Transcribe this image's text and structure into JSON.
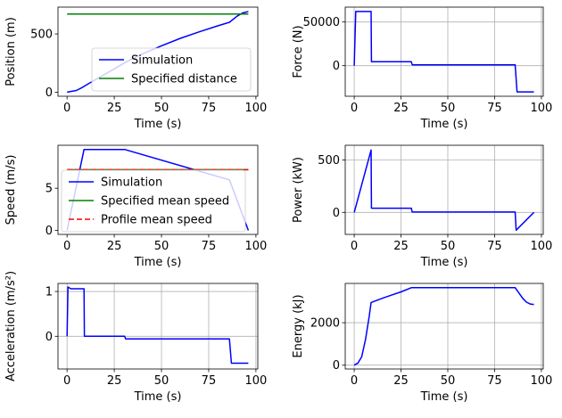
{
  "figure_title": "",
  "chart_data": [
    {
      "type": "line",
      "id": "position",
      "title": "",
      "xlabel": "Time (s)",
      "ylabel": "Position (m)",
      "xlim": [
        -4.8,
        101
      ],
      "ylim": [
        -35,
        730
      ],
      "xticks": [
        0,
        25,
        50,
        75,
        100
      ],
      "yticks": [
        0,
        500
      ],
      "xtick_labels": [
        "0",
        "25",
        "50",
        "75",
        "100"
      ],
      "ytick_labels": [
        "0",
        "500"
      ],
      "grid": false,
      "legend": {
        "placement": "lower-right",
        "entries": [
          "Simulation",
          "Specified distance"
        ]
      },
      "series": [
        {
          "name": "Simulation",
          "color": "#0000ff",
          "dash": "",
          "x": [
            0,
            5,
            8,
            9.2,
            15,
            20,
            25,
            31,
            40,
            50,
            60,
            70,
            80,
            86,
            90,
            93,
            96
          ],
          "y": [
            0,
            15,
            40,
            52,
            107,
            153,
            200,
            257,
            330,
            398,
            462,
            518,
            570,
            600,
            652,
            680,
            692
          ]
        },
        {
          "name": "Specified distance",
          "color": "#008000",
          "dash": "",
          "x": [
            0,
            96
          ],
          "y": [
            670,
            670
          ]
        }
      ]
    },
    {
      "type": "line",
      "id": "force",
      "title": "",
      "xlabel": "Time (s)",
      "ylabel": "Force (N)",
      "xlim": [
        -4.8,
        101
      ],
      "ylim": [
        -35000,
        67000
      ],
      "xticks": [
        0,
        25,
        50,
        75,
        100
      ],
      "yticks": [
        0,
        50000
      ],
      "xtick_labels": [
        "0",
        "25",
        "50",
        "75",
        "100"
      ],
      "ytick_labels": [
        "0",
        "50000"
      ],
      "grid": true,
      "legend": null,
      "series": [
        {
          "name": "Force",
          "color": "#0000ff",
          "dash": "",
          "x": [
            0,
            0.8,
            9,
            9.2,
            30.5,
            31,
            86,
            87,
            96
          ],
          "y": [
            0,
            62000,
            62000,
            4500,
            4500,
            1000,
            1000,
            -30000,
            -30000
          ]
        }
      ]
    },
    {
      "type": "line",
      "id": "speed",
      "title": "",
      "xlabel": "Time (s)",
      "ylabel": "Speed (m/s)",
      "xlim": [
        -4.8,
        101
      ],
      "ylim": [
        -0.48,
        10.1
      ],
      "xticks": [
        0,
        25,
        50,
        75,
        100
      ],
      "yticks": [
        0,
        5
      ],
      "xtick_labels": [
        "0",
        "25",
        "50",
        "75",
        "100"
      ],
      "ytick_labels": [
        "0",
        "5"
      ],
      "grid": false,
      "legend": {
        "placement": "lower-left",
        "entries": [
          "Simulation",
          "Specified mean speed",
          "Profile mean speed"
        ]
      },
      "series": [
        {
          "name": "Simulation",
          "color": "#0000ff",
          "dash": "",
          "x": [
            0,
            9,
            30.5,
            86,
            96
          ],
          "y": [
            0,
            9.6,
            9.6,
            6.0,
            0
          ]
        },
        {
          "name": "Specified mean speed",
          "color": "#008000",
          "dash": "",
          "x": [
            0,
            96
          ],
          "y": [
            7.2,
            7.2
          ]
        },
        {
          "name": "Profile mean speed",
          "color": "#ff0000",
          "dash": "6,3",
          "x": [
            0,
            96
          ],
          "y": [
            7.2,
            7.2
          ]
        }
      ]
    },
    {
      "type": "line",
      "id": "power",
      "title": "",
      "xlabel": "Time (s)",
      "ylabel": "Power (kW)",
      "xlim": [
        -4.8,
        101
      ],
      "ylim": [
        -210,
        640
      ],
      "xticks": [
        0,
        25,
        50,
        75,
        100
      ],
      "yticks": [
        0,
        500
      ],
      "xtick_labels": [
        "0",
        "25",
        "50",
        "75",
        "100"
      ],
      "ytick_labels": [
        "0",
        "500"
      ],
      "grid": true,
      "legend": null,
      "series": [
        {
          "name": "Power",
          "color": "#0000ff",
          "dash": "",
          "x": [
            0,
            9,
            9.2,
            30.5,
            31,
            86,
            86.5,
            96
          ],
          "y": [
            0,
            595,
            40,
            40,
            3,
            3,
            -170,
            0
          ]
        }
      ]
    },
    {
      "type": "line",
      "id": "acceleration",
      "title": "",
      "xlabel": "Time (s)",
      "ylabel": "Acceleration (m/s²)",
      "xlim": [
        -4.8,
        101
      ],
      "ylim": [
        -0.73,
        1.18
      ],
      "xticks": [
        0,
        25,
        50,
        75,
        100
      ],
      "yticks": [
        0,
        1
      ],
      "xtick_labels": [
        "0",
        "25",
        "50",
        "75",
        "100"
      ],
      "ytick_labels": [
        "0",
        "1"
      ],
      "grid": true,
      "legend": null,
      "series": [
        {
          "name": "Acceleration",
          "color": "#0000ff",
          "dash": "",
          "x": [
            0,
            0.5,
            2,
            9,
            9.2,
            30.5,
            31,
            86,
            87,
            96
          ],
          "y": [
            0,
            1.1,
            1.06,
            1.06,
            0,
            0,
            -0.06,
            -0.06,
            -0.6,
            -0.6
          ]
        }
      ]
    },
    {
      "type": "line",
      "id": "energy",
      "title": "",
      "xlabel": "Time (s)",
      "ylabel": "Energy (kJ)",
      "xlim": [
        -4.8,
        101
      ],
      "ylim": [
        -180,
        3850
      ],
      "xticks": [
        0,
        25,
        50,
        75,
        100
      ],
      "yticks": [
        0,
        2000
      ],
      "xtick_labels": [
        "0",
        "25",
        "50",
        "75",
        "100"
      ],
      "ytick_labels": [
        "0",
        "2000"
      ],
      "grid": true,
      "legend": null,
      "series": [
        {
          "name": "Energy",
          "color": "#0000ff",
          "dash": "",
          "x": [
            0,
            2,
            4,
            6,
            8,
            9,
            15,
            20,
            25,
            30.5,
            40,
            60,
            86,
            88,
            90,
            92,
            94,
            96
          ],
          "y": [
            0,
            100,
            400,
            1200,
            2300,
            2950,
            3150,
            3300,
            3450,
            3650,
            3650,
            3650,
            3650,
            3400,
            3150,
            2970,
            2880,
            2860
          ]
        }
      ]
    }
  ]
}
